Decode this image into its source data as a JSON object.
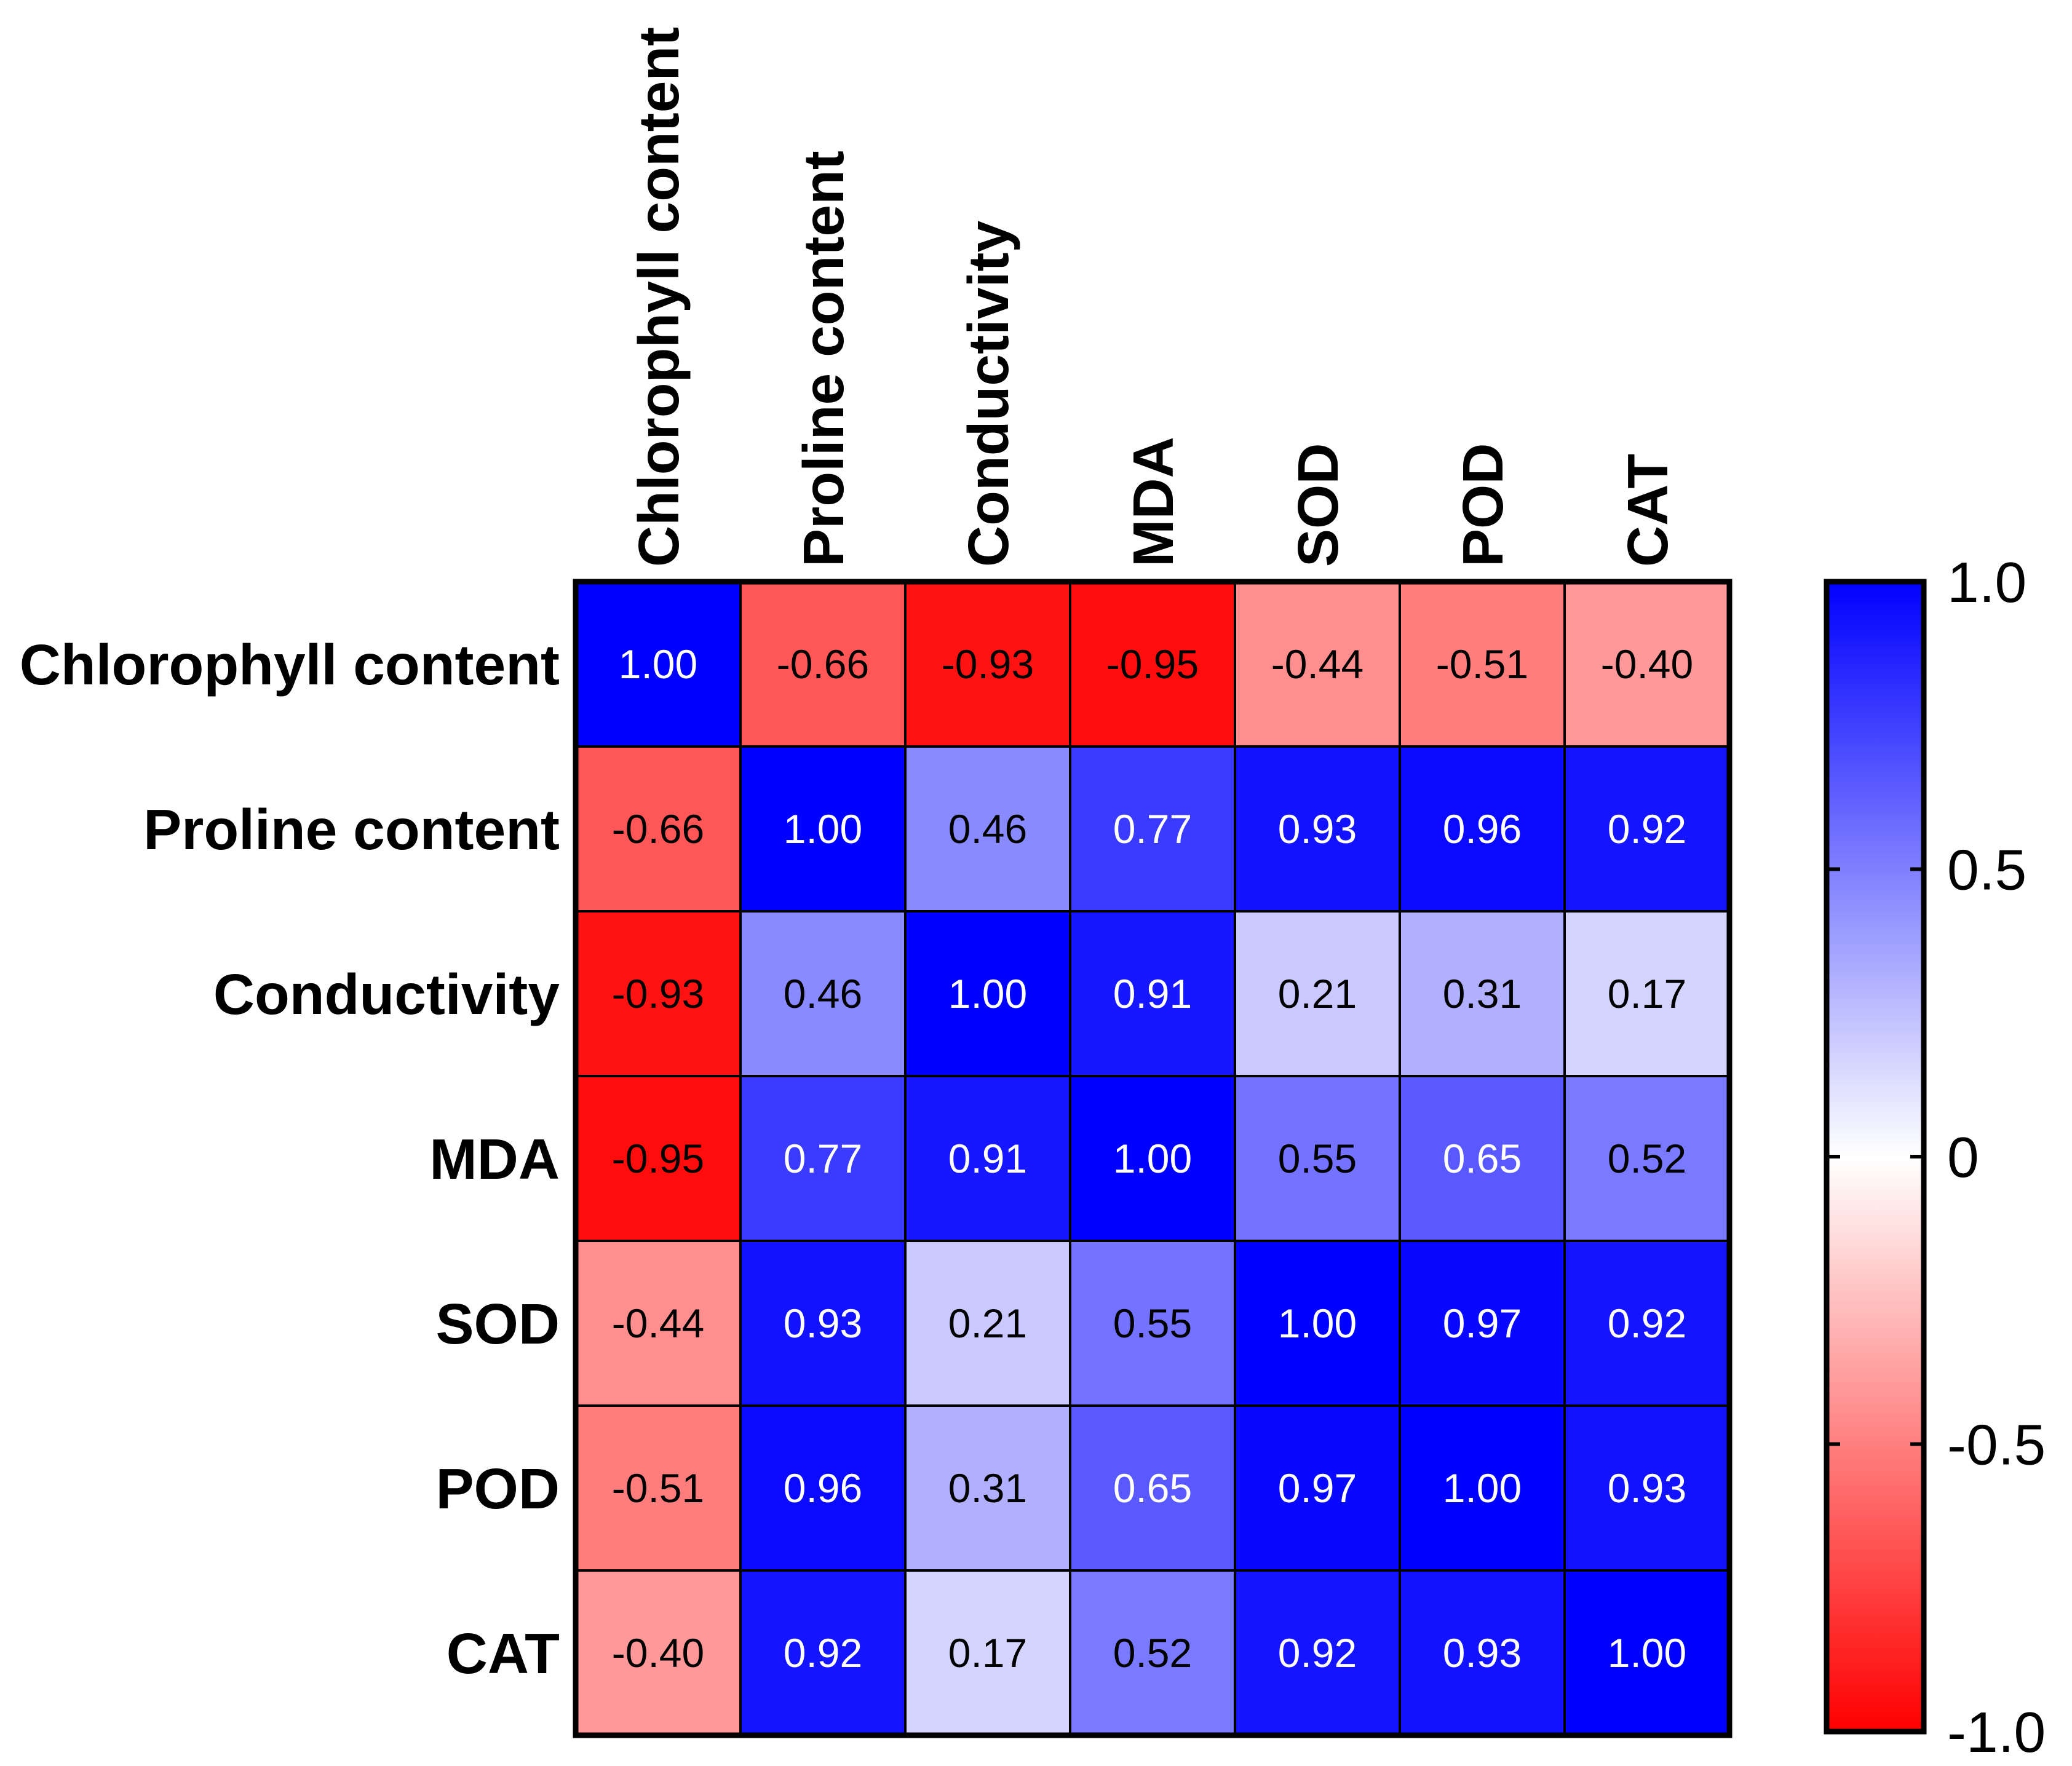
{
  "chart_data": {
    "type": "heatmap",
    "title": "",
    "xlabel": "",
    "ylabel": "",
    "variables": [
      "Chlorophyll content",
      "Proline content",
      "Conductivity",
      "MDA",
      "SOD",
      "POD",
      "CAT"
    ],
    "matrix": [
      [
        1.0,
        -0.66,
        -0.93,
        -0.95,
        -0.44,
        -0.51,
        -0.4
      ],
      [
        -0.66,
        1.0,
        0.46,
        0.77,
        0.93,
        0.96,
        0.92
      ],
      [
        -0.93,
        0.46,
        1.0,
        0.91,
        0.21,
        0.31,
        0.17
      ],
      [
        -0.95,
        0.77,
        0.91,
        1.0,
        0.55,
        0.65,
        0.52
      ],
      [
        -0.44,
        0.93,
        0.21,
        0.55,
        1.0,
        0.97,
        0.92
      ],
      [
        -0.51,
        0.96,
        0.31,
        0.65,
        0.97,
        1.0,
        0.93
      ],
      [
        -0.4,
        0.92,
        0.17,
        0.52,
        0.92,
        0.93,
        1.0
      ]
    ],
    "cell_labels": [
      [
        "1.00",
        "-0.66",
        "-0.93",
        "-0.95",
        "-0.44",
        "-0.51",
        "-0.40"
      ],
      [
        "-0.66",
        "1.00",
        "0.46",
        "0.77",
        "0.93",
        "0.96",
        "0.92"
      ],
      [
        "-0.93",
        "0.46",
        "1.00",
        "0.91",
        "0.21",
        "0.31",
        "0.17"
      ],
      [
        "-0.95",
        "0.77",
        "0.91",
        "1.00",
        "0.55",
        "0.65",
        "0.52"
      ],
      [
        "-0.44",
        "0.93",
        "0.21",
        "0.55",
        "1.00",
        "0.97",
        "0.92"
      ],
      [
        "-0.51",
        "0.96",
        "0.31",
        "0.65",
        "0.97",
        "1.00",
        "0.93"
      ],
      [
        "-0.40",
        "0.92",
        "0.17",
        "0.52",
        "0.92",
        "0.93",
        "1.00"
      ]
    ],
    "color_scale": {
      "range": [
        -1.0,
        1.0
      ],
      "ticks": [
        1.0,
        0.5,
        0,
        -0.5,
        -1.0
      ],
      "tick_labels": [
        "1.0",
        "0.5",
        "0",
        "-0.5",
        "-1.0"
      ],
      "low_color": "#ff0000",
      "mid_color": "#ffffff",
      "high_color": "#0000ff",
      "placement": "right"
    }
  }
}
